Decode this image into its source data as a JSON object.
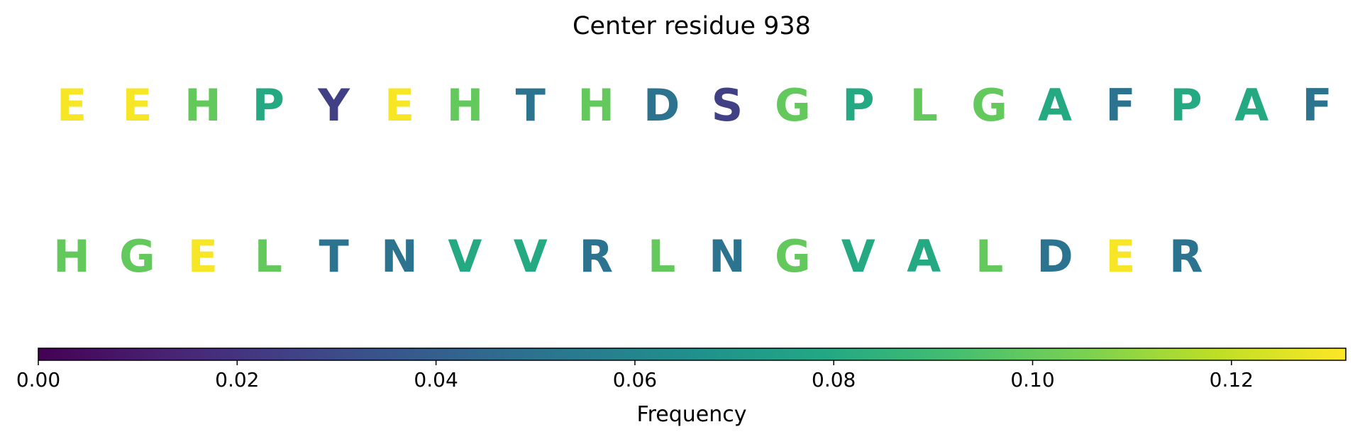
{
  "chart_data": {
    "type": "sequence-logo",
    "title": "Center residue 938",
    "rows": [
      {
        "residues": [
          {
            "letter": "E",
            "value": 0.13
          },
          {
            "letter": "E",
            "value": 0.13
          },
          {
            "letter": "H",
            "value": 0.1
          },
          {
            "letter": "P",
            "value": 0.08
          },
          {
            "letter": "Y",
            "value": 0.025
          },
          {
            "letter": "E",
            "value": 0.13
          },
          {
            "letter": "H",
            "value": 0.1
          },
          {
            "letter": "T",
            "value": 0.05
          },
          {
            "letter": "H",
            "value": 0.1
          },
          {
            "letter": "D",
            "value": 0.05
          },
          {
            "letter": "S",
            "value": 0.025
          },
          {
            "letter": "G",
            "value": 0.1
          },
          {
            "letter": "P",
            "value": 0.08
          },
          {
            "letter": "L",
            "value": 0.1
          },
          {
            "letter": "G",
            "value": 0.1
          },
          {
            "letter": "A",
            "value": 0.08
          },
          {
            "letter": "F",
            "value": 0.05
          },
          {
            "letter": "P",
            "value": 0.08
          },
          {
            "letter": "A",
            "value": 0.08
          },
          {
            "letter": "F",
            "value": 0.05
          }
        ]
      },
      {
        "residues": [
          {
            "letter": "H",
            "value": 0.1
          },
          {
            "letter": "G",
            "value": 0.1
          },
          {
            "letter": "E",
            "value": 0.13
          },
          {
            "letter": "L",
            "value": 0.1
          },
          {
            "letter": "T",
            "value": 0.05
          },
          {
            "letter": "N",
            "value": 0.05
          },
          {
            "letter": "V",
            "value": 0.08
          },
          {
            "letter": "V",
            "value": 0.08
          },
          {
            "letter": "R",
            "value": 0.05
          },
          {
            "letter": "L",
            "value": 0.1
          },
          {
            "letter": "N",
            "value": 0.05
          },
          {
            "letter": "G",
            "value": 0.1
          },
          {
            "letter": "V",
            "value": 0.08
          },
          {
            "letter": "A",
            "value": 0.08
          },
          {
            "letter": "L",
            "value": 0.1
          },
          {
            "letter": "D",
            "value": 0.05
          },
          {
            "letter": "E",
            "value": 0.13
          },
          {
            "letter": "R",
            "value": 0.05
          }
        ]
      }
    ],
    "colorbar": {
      "label": "Frequency",
      "colormap": "viridis",
      "range": [
        0,
        0.1315
      ],
      "ticks": [
        0.0,
        0.02,
        0.04,
        0.06,
        0.08,
        0.1,
        0.12
      ],
      "tick_labels": [
        "0.00",
        "0.02",
        "0.04",
        "0.06",
        "0.08",
        "0.10",
        "0.12"
      ],
      "orientation": "horizontal"
    }
  }
}
